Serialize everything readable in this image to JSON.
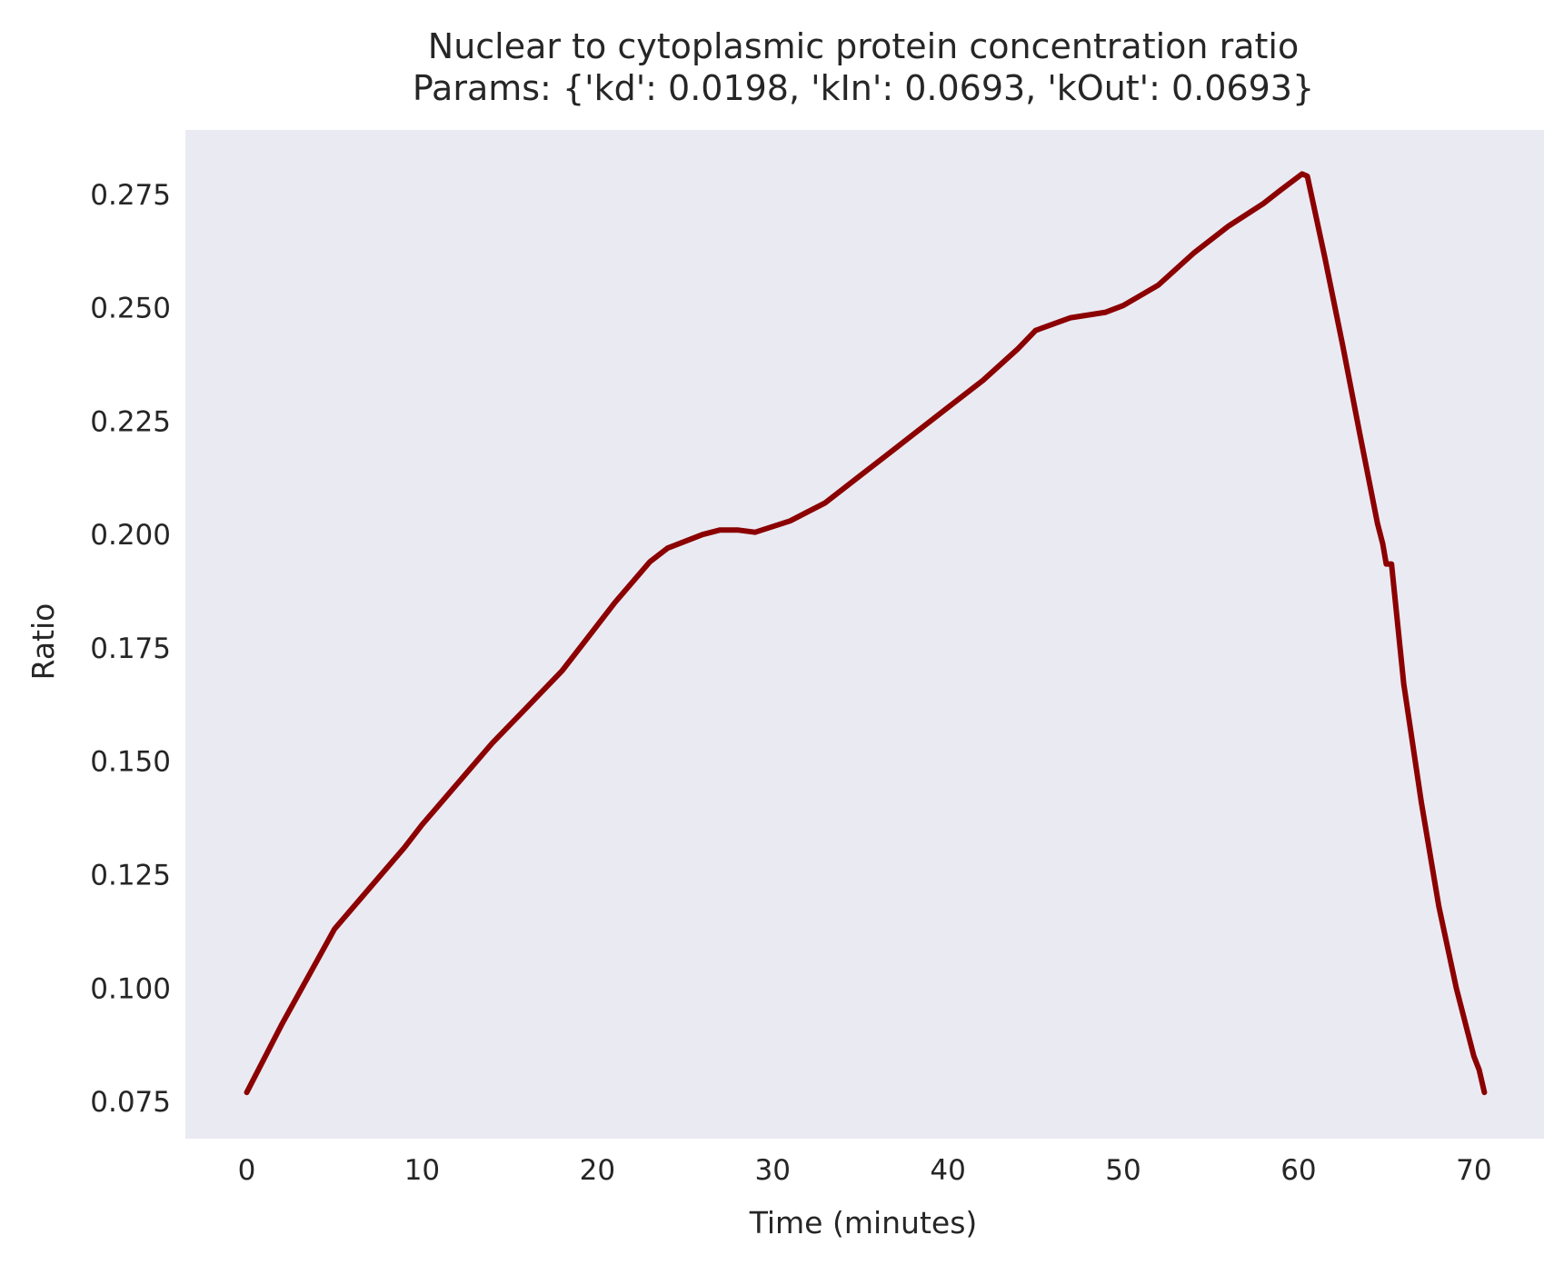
{
  "chart_data": {
    "type": "line",
    "title": "Nuclear to cytoplasmic protein concentration ratio",
    "subtitle": "Params: {'kd': 0.0198, 'kIn': 0.0693, 'kOut': 0.0693}",
    "xlabel": "Time (minutes)",
    "ylabel": "Ratio",
    "xlim": [
      -3.5,
      74
    ],
    "ylim": [
      0.0668,
      0.2892
    ],
    "xticks": [
      0,
      10,
      20,
      30,
      40,
      50,
      60,
      70
    ],
    "yticks": [
      0.075,
      0.1,
      0.125,
      0.15,
      0.175,
      0.2,
      0.225,
      0.25,
      0.275
    ],
    "ytick_labels": [
      "0.075",
      "0.100",
      "0.125",
      "0.150",
      "0.175",
      "0.200",
      "0.225",
      "0.250",
      "0.275"
    ],
    "xtick_labels": [
      "0",
      "10",
      "20",
      "30",
      "40",
      "50",
      "60",
      "70"
    ],
    "grid": false,
    "legend": false,
    "background_color": "#eaeaf2",
    "line_color": "#8b0000",
    "series": [
      {
        "x": [
          0,
          2,
          4,
          5,
          7,
          9,
          10,
          12,
          14,
          16,
          18,
          19,
          21,
          23,
          24,
          26,
          27,
          28,
          29,
          31,
          32,
          33,
          35,
          37,
          38,
          40,
          42,
          44,
          45,
          47,
          49,
          50,
          52,
          54,
          56,
          58,
          59,
          60.2,
          60.5,
          61.5,
          62.5,
          63.5,
          64.5,
          64.8,
          65,
          65.3,
          66,
          67,
          68,
          69,
          70,
          70.3,
          70.6
        ],
        "y": [
          0.077,
          0.092,
          0.106,
          0.113,
          0.122,
          0.131,
          0.136,
          0.145,
          0.154,
          0.162,
          0.17,
          0.175,
          0.185,
          0.194,
          0.197,
          0.2,
          0.201,
          0.201,
          0.2005,
          0.203,
          0.205,
          0.207,
          0.213,
          0.219,
          0.222,
          0.228,
          0.234,
          0.241,
          0.245,
          0.2478,
          0.249,
          0.2505,
          0.255,
          0.262,
          0.268,
          0.273,
          0.276,
          0.2795,
          0.279,
          0.261,
          0.242,
          0.222,
          0.2025,
          0.198,
          0.1935,
          0.1935,
          0.167,
          0.141,
          0.118,
          0.1,
          0.085,
          0.082,
          0.077
        ]
      }
    ]
  }
}
